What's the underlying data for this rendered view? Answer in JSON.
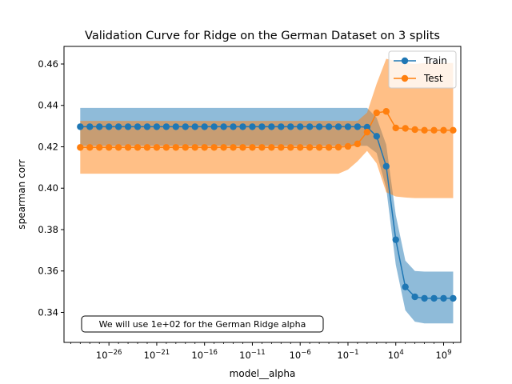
{
  "chart_data": {
    "type": "line",
    "title": "Validation Curve for Ridge on the German Dataset on 3 splits",
    "xlabel": "model__alpha",
    "ylabel": "spearman corr",
    "xscale": "log",
    "xlim_exp": [
      -30.7,
      10.8
    ],
    "ylim": [
      0.3255,
      0.4685
    ],
    "x_tick_labels": [
      {
        "exp": -26,
        "label": "10",
        "sup": "−26"
      },
      {
        "exp": -21,
        "label": "10",
        "sup": "−21"
      },
      {
        "exp": -16,
        "label": "10",
        "sup": "−16"
      },
      {
        "exp": -11,
        "label": "10",
        "sup": "−11"
      },
      {
        "exp": -6,
        "label": "10",
        "sup": "−6"
      },
      {
        "exp": -1,
        "label": "10",
        "sup": "−1"
      },
      {
        "exp": 4,
        "label": "10",
        "sup": "4"
      },
      {
        "exp": 9,
        "label": "10",
        "sup": "9"
      }
    ],
    "y_ticks": [
      0.34,
      0.36,
      0.38,
      0.4,
      0.42,
      0.44,
      0.46
    ],
    "y_tick_labels": [
      "0.34",
      "0.36",
      "0.38",
      "0.40",
      "0.42",
      "0.44",
      "0.46"
    ],
    "x_exponents": [
      -29,
      -28,
      -27,
      -26,
      -25,
      -24,
      -23,
      -22,
      -21,
      -20,
      -19,
      -18,
      -17,
      -16,
      -15,
      -14,
      -13,
      -12,
      -11,
      -10,
      -9,
      -8,
      -7,
      -6,
      -5,
      -4,
      -3,
      -2,
      -1,
      0,
      1,
      2,
      3,
      4,
      5,
      6,
      7,
      8,
      9,
      10
    ],
    "series": [
      {
        "name": "Train",
        "color": "#1f77b4",
        "band_color": "#1f77b4",
        "band_opacity": 0.5,
        "values": [
          0.4297,
          0.4297,
          0.4297,
          0.4297,
          0.4297,
          0.4297,
          0.4297,
          0.4297,
          0.4297,
          0.4297,
          0.4297,
          0.4297,
          0.4297,
          0.4297,
          0.4297,
          0.4297,
          0.4297,
          0.4297,
          0.4297,
          0.4297,
          0.4297,
          0.4297,
          0.4297,
          0.4297,
          0.4297,
          0.4297,
          0.4297,
          0.4297,
          0.4297,
          0.4297,
          0.4295,
          0.4251,
          0.4106,
          0.3751,
          0.3523,
          0.3475,
          0.3468,
          0.3468,
          0.3468,
          0.3468
        ],
        "lower": [
          0.4205,
          0.4205,
          0.4205,
          0.4205,
          0.4205,
          0.4205,
          0.4205,
          0.4205,
          0.4205,
          0.4205,
          0.4205,
          0.4205,
          0.4205,
          0.4205,
          0.4205,
          0.4205,
          0.4205,
          0.4205,
          0.4205,
          0.4205,
          0.4205,
          0.4205,
          0.4205,
          0.4205,
          0.4205,
          0.4205,
          0.4205,
          0.4205,
          0.4205,
          0.4205,
          0.4205,
          0.417,
          0.4,
          0.363,
          0.341,
          0.3355,
          0.3347,
          0.3347,
          0.3347,
          0.3347
        ],
        "upper": [
          0.4388,
          0.4388,
          0.4388,
          0.4388,
          0.4388,
          0.4388,
          0.4388,
          0.4388,
          0.4388,
          0.4388,
          0.4388,
          0.4388,
          0.4388,
          0.4388,
          0.4388,
          0.4388,
          0.4388,
          0.4388,
          0.4388,
          0.4388,
          0.4388,
          0.4388,
          0.4388,
          0.4388,
          0.4388,
          0.4388,
          0.4388,
          0.4388,
          0.4388,
          0.4388,
          0.4388,
          0.434,
          0.421,
          0.387,
          0.365,
          0.36,
          0.3597,
          0.3597,
          0.3597,
          0.3597
        ]
      },
      {
        "name": "Test",
        "color": "#ff7f0e",
        "band_color": "#ff7f0e",
        "band_opacity": 0.5,
        "values": [
          0.4197,
          0.4197,
          0.4197,
          0.4197,
          0.4197,
          0.4197,
          0.4197,
          0.4197,
          0.4197,
          0.4197,
          0.4197,
          0.4197,
          0.4197,
          0.4197,
          0.4197,
          0.4197,
          0.4197,
          0.4197,
          0.4197,
          0.4197,
          0.4197,
          0.4197,
          0.4197,
          0.4197,
          0.4197,
          0.4197,
          0.4197,
          0.4198,
          0.4202,
          0.4214,
          0.4271,
          0.4364,
          0.4371,
          0.4291,
          0.4289,
          0.4283,
          0.428,
          0.428,
          0.428,
          0.428
        ],
        "lower": [
          0.407,
          0.407,
          0.407,
          0.407,
          0.407,
          0.407,
          0.407,
          0.407,
          0.407,
          0.407,
          0.407,
          0.407,
          0.407,
          0.407,
          0.407,
          0.407,
          0.407,
          0.407,
          0.407,
          0.407,
          0.407,
          0.407,
          0.407,
          0.407,
          0.407,
          0.407,
          0.407,
          0.407,
          0.409,
          0.413,
          0.418,
          0.412,
          0.398,
          0.396,
          0.3955,
          0.3952,
          0.3952,
          0.3952,
          0.3952,
          0.3952
        ],
        "upper": [
          0.4325,
          0.4325,
          0.4325,
          0.4325,
          0.4325,
          0.4325,
          0.4325,
          0.4325,
          0.4325,
          0.4325,
          0.4325,
          0.4325,
          0.4325,
          0.4325,
          0.4325,
          0.4325,
          0.4325,
          0.4325,
          0.4325,
          0.4325,
          0.4325,
          0.4325,
          0.4325,
          0.4325,
          0.4325,
          0.4325,
          0.4325,
          0.4325,
          0.4325,
          0.4325,
          0.4365,
          0.4505,
          0.4625,
          0.4615,
          0.4605,
          0.46,
          0.4605,
          0.4605,
          0.4605,
          0.4605
        ]
      }
    ],
    "legend_position": "top-right",
    "annotation": "We will use 1e+02 for the German Ridge alpha",
    "grid": false
  }
}
